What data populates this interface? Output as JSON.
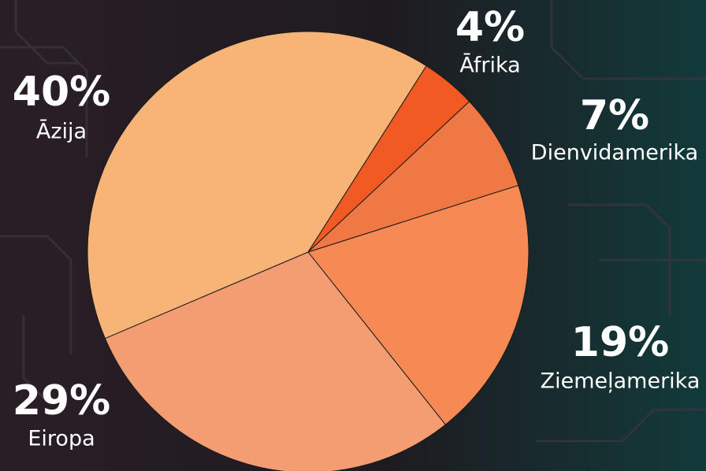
{
  "chart_data": {
    "type": "pie",
    "categories": [
      "Āfrika",
      "Dienvidamerika",
      "Ziemeļamerika",
      "Eiropa",
      "Āzija"
    ],
    "values": [
      4,
      7,
      19,
      29,
      40
    ],
    "value_labels": [
      "4%",
      "7%",
      "19%",
      "29%",
      "40%"
    ],
    "colors": [
      "#f15a22",
      "#f07845",
      "#f58a55",
      "#f59d72",
      "#f8b377"
    ]
  }
}
